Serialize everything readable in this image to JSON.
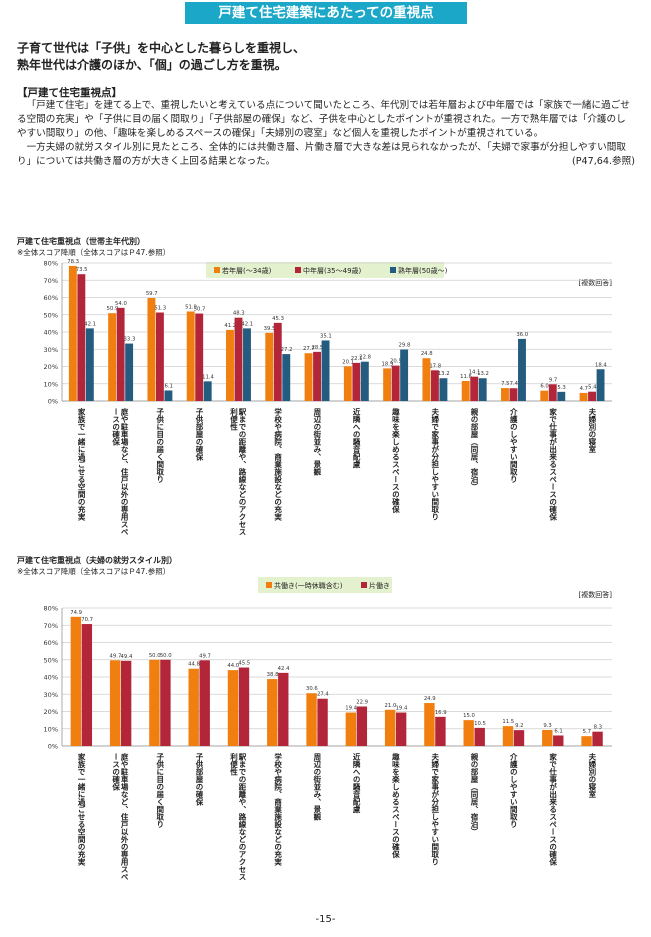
{
  "banner": "戸建て住宅建築にあたっての重視点",
  "headline": [
    "子育て世代は「子供」を中心とした暮らしを重視し、",
    "熟年世代は介護のほか、「個」の過ごし方を重視。"
  ],
  "section_title": "【戸建て住宅重視点】",
  "paragraphs": [
    "「戸建て住宅」を建てる上で、重視したいと考えている点について聞いたところ、年代別では若年層および中年層では「家族で一緒に過ごせる空間の充実」や「子供に目の届く間取り」「子供部屋の確保」など、子供を中心としたポイントが重視された。一方で熟年層では「介護のしやすい間取り」の他、「趣味を楽しめるスペースの確保」「夫婦別の寝室」など個人を重視したポイントが重視されている。",
    "一方夫婦の就労スタイル別に見たところ、全体的には共働き層、片働き層で大きな差は見られなかったが、「夫婦で家事が分担しやすい間取り」については共働き層の方が大きく上回る結果となった。"
  ],
  "reference": "(P47,64.参照)",
  "page_number": "-15-",
  "chart_data": [
    {
      "type": "bar",
      "title": "戸建て住宅重視点（世帯主年代別）",
      "subtitle": "※全体スコア降順（全体スコアはＰ47.参照）",
      "note": "[複数回答]",
      "categories": [
        "家族で一緒に過ごせる空間の充実",
        "庭や駐車場など、住戸以外の専用スペースの確保",
        "子供に目の届く間取り",
        "子供部屋の確保",
        "駅までの距離や、路線などのアクセス利便性",
        "学校や病院、商業施設などの充実",
        "周辺の街並み、景観",
        "近隣への騒音配慮",
        "趣味を楽しめるスペースの確保",
        "夫婦で家事が分担しやすい間取り",
        "親の部屋（同居、宿泊）",
        "介護のしやすい間取り",
        "家で仕事が出来るスペースの確保",
        "夫婦別の寝室"
      ],
      "series": [
        {
          "name": "若年層(〜34歳)",
          "color": "#f07f0f",
          "values": [
            78.3,
            50.9,
            59.7,
            51.9,
            41.2,
            39.5,
            27.7,
            20.1,
            18.9,
            24.8,
            11.6,
            7.5,
            6.0,
            4.7
          ]
        },
        {
          "name": "中年層(35〜49歳)",
          "color": "#b3263a",
          "values": [
            73.5,
            54.0,
            51.3,
            50.7,
            48.3,
            45.3,
            28.5,
            22.1,
            20.5,
            17.8,
            14.1,
            7.4,
            9.7,
            5.4
          ]
        },
        {
          "name": "熟年層(50歳〜)",
          "color": "#245c7f",
          "values": [
            42.1,
            33.3,
            6.1,
            11.4,
            42.1,
            27.2,
            35.1,
            22.8,
            29.8,
            13.2,
            13.2,
            36.0,
            5.3,
            18.4
          ]
        }
      ],
      "yticks": [
        "0%",
        "10%",
        "20%",
        "30%",
        "40%",
        "50%",
        "60%",
        "70%",
        "80%"
      ],
      "ylim": [
        0,
        80
      ]
    },
    {
      "type": "bar",
      "title": "戸建て住宅重視点（夫婦の就労スタイル別）",
      "subtitle": "※全体スコア降順（全体スコアはＰ47.参照）",
      "note": "[複数回答]",
      "categories": [
        "家族で一緒に過ごせる空間の充実",
        "庭や駐車場など、住戸以外の専用スペースの確保",
        "子供に目の届く間取り",
        "子供部屋の確保",
        "駅までの距離や、路線などのアクセス利便性",
        "学校や病院、商業施設などの充実",
        "周辺の街並み、景観",
        "近隣への騒音配慮",
        "趣味を楽しめるスペースの確保",
        "夫婦で家事が分担しやすい間取り",
        "親の部屋（同居、宿泊）",
        "介護のしやすい間取り",
        "家で仕事が出来るスペースの確保",
        "夫婦別の寝室"
      ],
      "series": [
        {
          "name": "共働き(一時休職含む)",
          "color": "#f07f0f",
          "values": [
            74.9,
            49.7,
            50.0,
            44.8,
            44.0,
            38.8,
            30.6,
            19.4,
            21.0,
            24.9,
            15.0,
            11.5,
            9.3,
            5.7
          ]
        },
        {
          "name": "片働き",
          "color": "#b3263a",
          "values": [
            70.7,
            49.4,
            50.0,
            49.7,
            45.5,
            42.4,
            27.4,
            22.9,
            19.4,
            16.9,
            10.5,
            9.2,
            6.1,
            8.3
          ]
        }
      ],
      "yticks": [
        "0%",
        "10%",
        "20%",
        "30%",
        "40%",
        "50%",
        "60%",
        "70%",
        "80%"
      ],
      "ylim": [
        0,
        80
      ]
    }
  ]
}
